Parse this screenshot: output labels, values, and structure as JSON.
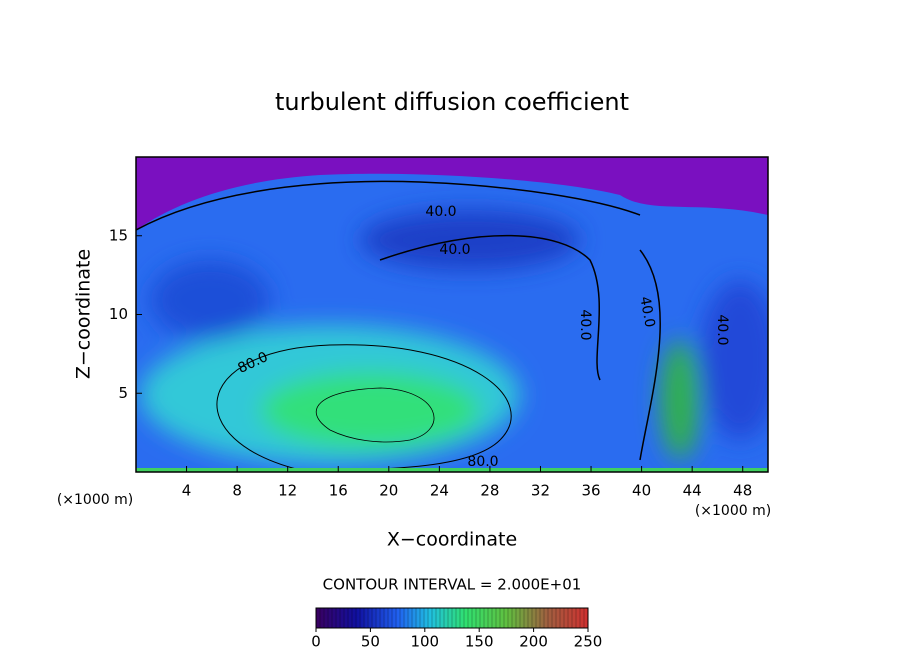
{
  "chart_data": {
    "type": "contour",
    "title": "turbulent diffusion coefficient",
    "x_label": "X−coordinate",
    "y_label": "Z−coordinate",
    "x_unit": "(×1000 m)",
    "y_unit": "(×1000 m)",
    "xlim": [
      0,
      50
    ],
    "xticks": [
      4,
      8,
      12,
      16,
      20,
      24,
      28,
      32,
      36,
      40,
      44,
      48
    ],
    "ylim": [
      0,
      20
    ],
    "yticks": [
      5,
      10,
      15
    ],
    "contour_labels": [
      "40.0",
      "40.0",
      "40.0",
      "40.0",
      "40.0",
      "80.0",
      "80.0"
    ],
    "contour_interval_text": "CONTOUR INTERVAL = 2.000E+01",
    "colorbar": {
      "lim": [
        0,
        250
      ],
      "ticks": [
        0,
        50,
        100,
        150,
        200,
        250
      ]
    }
  }
}
